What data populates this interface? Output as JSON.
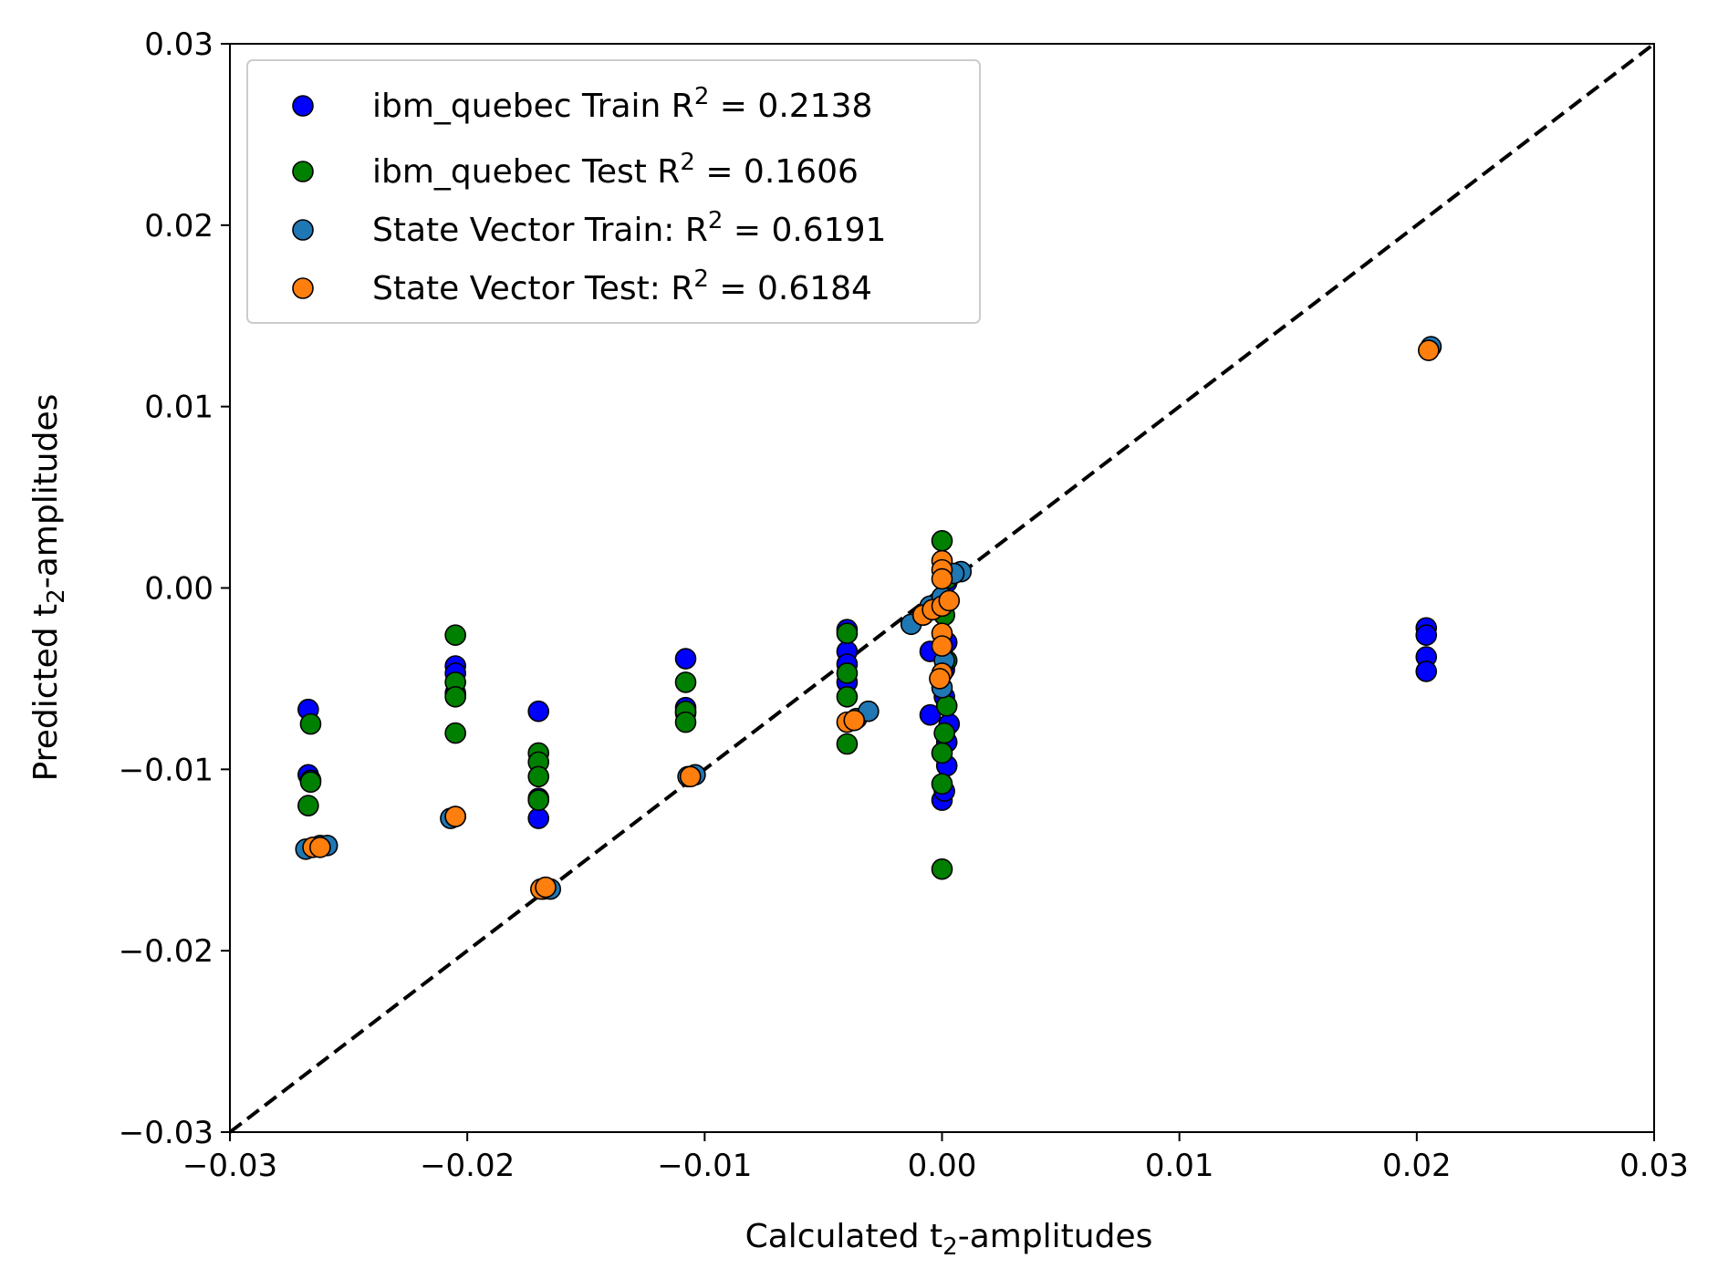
{
  "chart_data": {
    "type": "scatter",
    "title": "",
    "xlabel": "Calculated t",
    "xlabel_sub": "2",
    "xlabel_suffix": "-amplitudes",
    "ylabel": "Predicted t",
    "ylabel_sub": "2",
    "ylabel_suffix": "-amplitudes",
    "xlim": [
      -0.03,
      0.03
    ],
    "ylim": [
      -0.03,
      0.03
    ],
    "xticks": [
      -0.03,
      -0.02,
      -0.01,
      0.0,
      0.01,
      0.02,
      0.03
    ],
    "yticks": [
      -0.03,
      -0.02,
      -0.01,
      0.0,
      0.01,
      0.02,
      0.03
    ],
    "xtick_labels": [
      "−0.03",
      "−0.02",
      "−0.01",
      "0.00",
      "0.01",
      "0.02",
      "0.03"
    ],
    "ytick_labels": [
      "−0.03",
      "−0.02",
      "−0.01",
      "0.00",
      "0.01",
      "0.02",
      "0.03"
    ],
    "grid": false,
    "legend_position": "top-left",
    "reference_line": {
      "type": "y=x",
      "style": "dashed",
      "color": "#000000"
    },
    "series": [
      {
        "name": "ibm_quebec Train R² = 0.2138",
        "legend_prefix": "ibm_quebec Train R",
        "legend_sup": "2",
        "legend_suffix": " = 0.2138",
        "color": "#0000ff",
        "edge": "#000000",
        "points": [
          [
            -0.0267,
            -0.0067
          ],
          [
            -0.0267,
            -0.0103
          ],
          [
            -0.0266,
            -0.0106
          ],
          [
            -0.0205,
            -0.0043
          ],
          [
            -0.0205,
            -0.0047
          ],
          [
            -0.0205,
            -0.0058
          ],
          [
            -0.017,
            -0.0068
          ],
          [
            -0.017,
            -0.0127
          ],
          [
            -0.017,
            -0.0116
          ],
          [
            -0.0108,
            -0.0039
          ],
          [
            -0.0108,
            -0.0066
          ],
          [
            -0.0108,
            -0.0069
          ],
          [
            -0.004,
            -0.0023
          ],
          [
            -0.004,
            -0.0035
          ],
          [
            -0.004,
            -0.0042
          ],
          [
            -0.004,
            -0.0052
          ],
          [
            -0.0005,
            -0.0035
          ],
          [
            -0.0005,
            -0.007
          ],
          [
            0.0,
            -0.0117
          ],
          [
            0.0001,
            -0.0112
          ],
          [
            0.0002,
            -0.0098
          ],
          [
            0.0002,
            -0.0085
          ],
          [
            0.0003,
            -0.0075
          ],
          [
            0.0001,
            -0.006
          ],
          [
            0.0002,
            -0.003
          ],
          [
            0.0001,
            -0.0015
          ],
          [
            0.0002,
            0.0003
          ],
          [
            0.0001,
            -0.0045
          ],
          [
            0.0204,
            -0.0022
          ],
          [
            0.0204,
            -0.0026
          ],
          [
            0.0204,
            -0.0038
          ],
          [
            0.0204,
            -0.0046
          ]
        ]
      },
      {
        "name": "ibm_quebec Test R² = 0.1606",
        "legend_prefix": "ibm_quebec Test R",
        "legend_sup": "2",
        "legend_suffix": " = 0.1606",
        "color": "#008000",
        "edge": "#000000",
        "points": [
          [
            -0.0266,
            -0.0075
          ],
          [
            -0.0266,
            -0.0107
          ],
          [
            -0.0267,
            -0.012
          ],
          [
            -0.0205,
            -0.0026
          ],
          [
            -0.0205,
            -0.0052
          ],
          [
            -0.0205,
            -0.006
          ],
          [
            -0.0205,
            -0.008
          ],
          [
            -0.017,
            -0.0091
          ],
          [
            -0.017,
            -0.0096
          ],
          [
            -0.017,
            -0.0104
          ],
          [
            -0.017,
            -0.0117
          ],
          [
            -0.0108,
            -0.0052
          ],
          [
            -0.0108,
            -0.0068
          ],
          [
            -0.0108,
            -0.0074
          ],
          [
            -0.004,
            -0.0025
          ],
          [
            -0.004,
            -0.0047
          ],
          [
            -0.004,
            -0.006
          ],
          [
            -0.004,
            -0.0086
          ],
          [
            0.0,
            0.0026
          ],
          [
            0.0,
            -0.0091
          ],
          [
            0.0,
            -0.0108
          ],
          [
            0.0,
            -0.0155
          ],
          [
            0.0002,
            -0.0065
          ],
          [
            0.0001,
            -0.008
          ],
          [
            0.0002,
            -0.004
          ],
          [
            0.0001,
            -0.0015
          ],
          [
            0.0002,
            0.0005
          ]
        ]
      },
      {
        "name": "State Vector Train: R² = 0.6191",
        "legend_prefix": "State Vector Train: R",
        "legend_sup": "2",
        "legend_suffix": " = 0.6191",
        "color": "#1f77b4",
        "edge": "#000000",
        "points": [
          [
            -0.0268,
            -0.0144
          ],
          [
            -0.0262,
            -0.0142
          ],
          [
            -0.0259,
            -0.0142
          ],
          [
            -0.0207,
            -0.0127
          ],
          [
            -0.0205,
            -0.0126
          ],
          [
            -0.0168,
            -0.0166
          ],
          [
            -0.0165,
            -0.0166
          ],
          [
            -0.0107,
            -0.0104
          ],
          [
            -0.0104,
            -0.0103
          ],
          [
            -0.0036,
            -0.0072
          ],
          [
            -0.0031,
            -0.0068
          ],
          [
            -0.0013,
            -0.002
          ],
          [
            -0.0008,
            -0.0015
          ],
          [
            -0.0005,
            -0.001
          ],
          [
            0.0008,
            0.0009
          ],
          [
            0.0005,
            0.0008
          ],
          [
            0.0,
            -0.0005
          ],
          [
            0.0,
            -0.0055
          ],
          [
            0.0001,
            -0.004
          ],
          [
            0.0206,
            0.0133
          ]
        ]
      },
      {
        "name": "State Vector Test: R² = 0.6184",
        "legend_prefix": "State Vector Test: R",
        "legend_sup": "2",
        "legend_suffix": " = 0.6184",
        "color": "#ff7f0e",
        "edge": "#000000",
        "points": [
          [
            -0.0265,
            -0.0143
          ],
          [
            -0.0262,
            -0.0143
          ],
          [
            -0.0205,
            -0.0126
          ],
          [
            -0.0169,
            -0.0166
          ],
          [
            -0.0167,
            -0.0165
          ],
          [
            -0.0106,
            -0.0104
          ],
          [
            -0.004,
            -0.0074
          ],
          [
            -0.0037,
            -0.0073
          ],
          [
            -0.0008,
            -0.0015
          ],
          [
            -0.0004,
            -0.0012
          ],
          [
            0.0,
            0.0015
          ],
          [
            0.0,
            0.001
          ],
          [
            0.0,
            0.0005
          ],
          [
            0.0,
            -0.001
          ],
          [
            0.0,
            -0.0025
          ],
          [
            0.0,
            -0.0032
          ],
          [
            0.0,
            -0.0047
          ],
          [
            0.0003,
            -0.0007
          ],
          [
            -0.0001,
            -0.005
          ],
          [
            0.0205,
            0.0131
          ]
        ]
      }
    ]
  }
}
